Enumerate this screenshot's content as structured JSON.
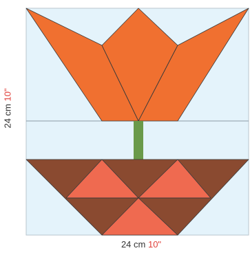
{
  "dimensions": {
    "width_cm": "24 cm",
    "width_in": "10\"",
    "height_cm": "24 cm",
    "height_in": "10\""
  },
  "colors": {
    "background": "#e4f3fb",
    "petal": "#f07030",
    "stem": "#6a9a4a",
    "pot_dark": "#8a4a30",
    "pot_light": "#ef6a50",
    "outline": "#3a3a3a",
    "inch_label": "#e0403a"
  }
}
